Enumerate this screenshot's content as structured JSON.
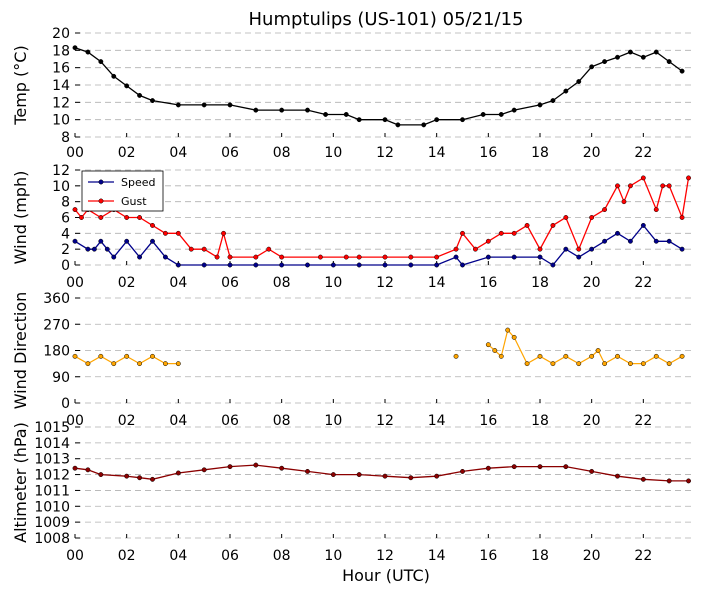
{
  "title": "Humptulips (US-101) 05/21/15",
  "xlabel": "Hour (UTC)",
  "x_tick_labels": [
    "00",
    "02",
    "04",
    "06",
    "08",
    "10",
    "12",
    "14",
    "16",
    "18",
    "20",
    "22"
  ],
  "colors": {
    "temp": "#000000",
    "speed": "#00008b",
    "gust": "#ff0000",
    "direction": "#ffa500",
    "altimeter": "#8b0000",
    "grid": "#b0b0b0"
  },
  "chart_data": [
    {
      "type": "line",
      "title": "Humptulips (US-101) 05/21/15",
      "ylabel": "Temp (°C)",
      "ylim": [
        8,
        20
      ],
      "yticks": [
        8,
        10,
        12,
        14,
        16,
        18,
        20
      ],
      "xlim": [
        0,
        24
      ],
      "series": [
        {
          "points": [
            [
              0,
              18.3
            ],
            [
              0.5,
              17.8
            ],
            [
              1,
              16.7
            ],
            [
              1.5,
              15.0
            ],
            [
              2,
              13.9
            ],
            [
              2.5,
              12.8
            ],
            [
              3,
              12.2
            ],
            [
              4,
              11.7
            ],
            [
              5,
              11.7
            ],
            [
              6,
              11.7
            ],
            [
              7,
              11.1
            ],
            [
              8,
              11.1
            ],
            [
              9,
              11.1
            ],
            [
              9.7,
              10.6
            ],
            [
              10.5,
              10.6
            ],
            [
              11,
              10.0
            ],
            [
              12,
              10.0
            ],
            [
              12.5,
              9.4
            ],
            [
              13.5,
              9.4
            ],
            [
              14,
              10.0
            ],
            [
              15,
              10.0
            ],
            [
              15.8,
              10.6
            ],
            [
              16.5,
              10.6
            ],
            [
              17,
              11.1
            ],
            [
              18,
              11.7
            ],
            [
              18.5,
              12.2
            ],
            [
              19,
              13.3
            ],
            [
              19.5,
              14.4
            ],
            [
              20,
              16.1
            ],
            [
              20.5,
              16.7
            ],
            [
              21,
              17.2
            ],
            [
              21.5,
              17.8
            ],
            [
              22,
              17.2
            ],
            [
              22.5,
              17.8
            ],
            [
              23,
              16.7
            ],
            [
              23.5,
              15.6
            ]
          ]
        }
      ]
    },
    {
      "type": "line",
      "ylabel": "Wind (mph)",
      "ylim": [
        0,
        12
      ],
      "yticks": [
        0,
        2,
        4,
        6,
        8,
        10,
        12
      ],
      "xlim": [
        0,
        24
      ],
      "legend": "top-left",
      "series": [
        {
          "name": "Speed",
          "points": [
            [
              0,
              3
            ],
            [
              0.5,
              2
            ],
            [
              0.75,
              2
            ],
            [
              1,
              3
            ],
            [
              1.25,
              2
            ],
            [
              1.5,
              1
            ],
            [
              2,
              3
            ],
            [
              2.5,
              1
            ],
            [
              3,
              3
            ],
            [
              3.5,
              1
            ],
            [
              4,
              0
            ],
            [
              5,
              0
            ],
            [
              6,
              0
            ],
            [
              7,
              0
            ],
            [
              8,
              0
            ],
            [
              9,
              0
            ],
            [
              10,
              0
            ],
            [
              11,
              0
            ],
            [
              12,
              0
            ],
            [
              13,
              0
            ],
            [
              14,
              0
            ],
            [
              14.75,
              1
            ],
            [
              15,
              0
            ],
            [
              16,
              1
            ],
            [
              17,
              1
            ],
            [
              18,
              1
            ],
            [
              18.5,
              0
            ],
            [
              19,
              2
            ],
            [
              19.5,
              1
            ],
            [
              20,
              2
            ],
            [
              20.5,
              3
            ],
            [
              21,
              4
            ],
            [
              21.5,
              3
            ],
            [
              22,
              5
            ],
            [
              22.5,
              3
            ],
            [
              23,
              3
            ],
            [
              23.5,
              2
            ]
          ]
        },
        {
          "name": "Gust",
          "points": [
            [
              0,
              7
            ],
            [
              0.25,
              6
            ],
            [
              0.5,
              7
            ],
            [
              1,
              6
            ],
            [
              1.5,
              7
            ],
            [
              2,
              6
            ],
            [
              2.5,
              6
            ],
            [
              3,
              5
            ],
            [
              3.5,
              4
            ],
            [
              4,
              4
            ],
            [
              4.5,
              2
            ],
            [
              5,
              2
            ],
            [
              5.5,
              1
            ],
            [
              5.75,
              4
            ],
            [
              6,
              1
            ],
            [
              7,
              1
            ],
            [
              7.5,
              2
            ],
            [
              8,
              1
            ],
            [
              9.5,
              1
            ],
            [
              10.5,
              1
            ],
            [
              11,
              1
            ],
            [
              12,
              1
            ],
            [
              13,
              1
            ],
            [
              14,
              1
            ],
            [
              14.75,
              2
            ],
            [
              15,
              4
            ],
            [
              15.5,
              2
            ],
            [
              16,
              3
            ],
            [
              16.5,
              4
            ],
            [
              17,
              4
            ],
            [
              17.5,
              5
            ],
            [
              18,
              2
            ],
            [
              18.5,
              5
            ],
            [
              19,
              6
            ],
            [
              19.5,
              2
            ],
            [
              20,
              6
            ],
            [
              20.5,
              7
            ],
            [
              21,
              10
            ],
            [
              21.25,
              8
            ],
            [
              21.5,
              10
            ],
            [
              22,
              11
            ],
            [
              22.5,
              7
            ],
            [
              22.75,
              10
            ],
            [
              23,
              10
            ],
            [
              23.5,
              6
            ],
            [
              23.75,
              11
            ]
          ]
        }
      ]
    },
    {
      "type": "scatter",
      "ylabel": "Wind Direction",
      "ylim": [
        0,
        360
      ],
      "yticks": [
        0,
        90,
        180,
        270,
        360
      ],
      "xlim": [
        0,
        24
      ],
      "series": [
        {
          "points": [
            [
              0,
              160
            ],
            [
              0.5,
              135
            ],
            [
              1,
              160
            ],
            [
              1.5,
              135
            ],
            [
              2,
              160
            ],
            [
              2.5,
              135
            ],
            [
              3,
              160
            ],
            [
              3.5,
              135
            ],
            [
              4,
              135
            ],
            [
              14.75,
              160
            ],
            [
              16,
              200
            ],
            [
              16.25,
              180
            ],
            [
              16.5,
              160
            ],
            [
              16.75,
              250
            ],
            [
              17,
              225
            ],
            [
              17.5,
              135
            ],
            [
              18,
              160
            ],
            [
              18.5,
              135
            ],
            [
              19,
              160
            ],
            [
              19.5,
              135
            ],
            [
              20,
              160
            ],
            [
              20.25,
              180
            ],
            [
              20.5,
              135
            ],
            [
              21,
              160
            ],
            [
              21.5,
              135
            ],
            [
              22,
              135
            ],
            [
              22.5,
              160
            ],
            [
              23,
              135
            ],
            [
              23.5,
              160
            ]
          ]
        }
      ]
    },
    {
      "type": "line",
      "ylabel": "Altimeter (hPa)",
      "ylim": [
        1008,
        1015
      ],
      "yticks": [
        1008,
        1009,
        1010,
        1011,
        1012,
        1013,
        1014,
        1015
      ],
      "xlim": [
        0,
        24
      ],
      "series": [
        {
          "points": [
            [
              0,
              1012.4
            ],
            [
              0.5,
              1012.3
            ],
            [
              1,
              1012.0
            ],
            [
              2,
              1011.9
            ],
            [
              2.5,
              1011.8
            ],
            [
              3,
              1011.7
            ],
            [
              4,
              1012.1
            ],
            [
              5,
              1012.3
            ],
            [
              6,
              1012.5
            ],
            [
              7,
              1012.6
            ],
            [
              8,
              1012.4
            ],
            [
              9,
              1012.2
            ],
            [
              10,
              1012.0
            ],
            [
              11,
              1012.0
            ],
            [
              12,
              1011.9
            ],
            [
              13,
              1011.8
            ],
            [
              14,
              1011.9
            ],
            [
              15,
              1012.2
            ],
            [
              16,
              1012.4
            ],
            [
              17,
              1012.5
            ],
            [
              18,
              1012.5
            ],
            [
              19,
              1012.5
            ],
            [
              20,
              1012.2
            ],
            [
              21,
              1011.9
            ],
            [
              22,
              1011.7
            ],
            [
              23,
              1011.6
            ],
            [
              23.75,
              1011.6
            ]
          ]
        }
      ]
    }
  ]
}
